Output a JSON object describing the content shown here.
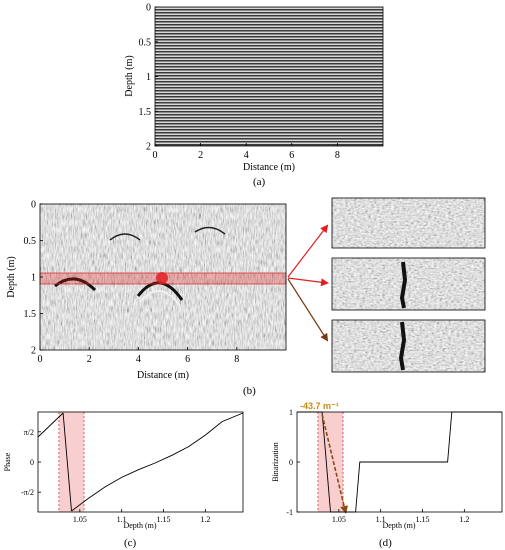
{
  "panel_a": {
    "caption": "(a)",
    "xlabel": "Distance (m)",
    "ylabel": "Depth (m)",
    "xticks": [
      "0",
      "2",
      "4",
      "6",
      "8"
    ],
    "yticks": [
      "0",
      "0.5",
      "1",
      "1.5",
      "2"
    ]
  },
  "panel_b": {
    "caption": "(b)",
    "xlabel": "Distance (m)",
    "ylabel": "Depth (m)",
    "xticks": [
      "0",
      "2",
      "4",
      "6",
      "8"
    ],
    "yticks": [
      "0",
      "0.5",
      "1",
      "1.5",
      "2"
    ],
    "highlight_color": "#e02020",
    "arrow_colors": [
      "#e02020",
      "#e02020",
      "#7a3a10"
    ]
  },
  "chart_data": [
    {
      "type": "line",
      "panel": "c",
      "caption": "(c)",
      "xlabel": "Depth (m)",
      "ylabel": "Phase",
      "xticks": [
        "1.05",
        "1.1",
        "1.15",
        "1.2"
      ],
      "yticks": [
        "π/2",
        "0",
        "-π/2"
      ],
      "xlim": [
        1.0,
        1.245
      ],
      "ylim": [
        -2.6,
        2.6
      ],
      "highlight_range": [
        1.025,
        1.055
      ],
      "series": [
        {
          "x": [
            1.0,
            1.03
          ],
          "y": [
            1.3,
            2.55
          ]
        },
        {
          "x": [
            1.03,
            1.04
          ],
          "y": [
            2.55,
            -2.55
          ]
        },
        {
          "x": [
            1.04,
            1.06,
            1.08,
            1.1,
            1.12,
            1.14,
            1.16,
            1.18,
            1.2,
            1.22,
            1.245
          ],
          "y": [
            -2.55,
            -1.9,
            -1.3,
            -0.8,
            -0.4,
            -0.05,
            0.35,
            0.8,
            1.4,
            2.1,
            2.55
          ]
        }
      ]
    },
    {
      "type": "line",
      "panel": "d",
      "caption": "(d)",
      "xlabel": "Depth (m)",
      "ylabel": "Binarization",
      "xticks": [
        "1.05",
        "1.1",
        "1.15",
        "1.2"
      ],
      "yticks": [
        "1",
        "0",
        "-1"
      ],
      "xlim": [
        1.0,
        1.245
      ],
      "ylim": [
        -1,
        1
      ],
      "highlight_range": [
        1.025,
        1.055
      ],
      "annotation": "-43.7 m⁻¹",
      "annotation_color": "#c98a10",
      "slope_line": {
        "x": [
          1.03,
          1.058
        ],
        "y": [
          0.95,
          -1.0
        ]
      },
      "series": [
        {
          "x": [
            1.0,
            1.03,
            1.04,
            1.065,
            1.07,
            1.075,
            1.18,
            1.185,
            1.245
          ],
          "y": [
            1,
            1,
            -1,
            -1,
            -1,
            0,
            0,
            1,
            1
          ]
        }
      ]
    }
  ]
}
